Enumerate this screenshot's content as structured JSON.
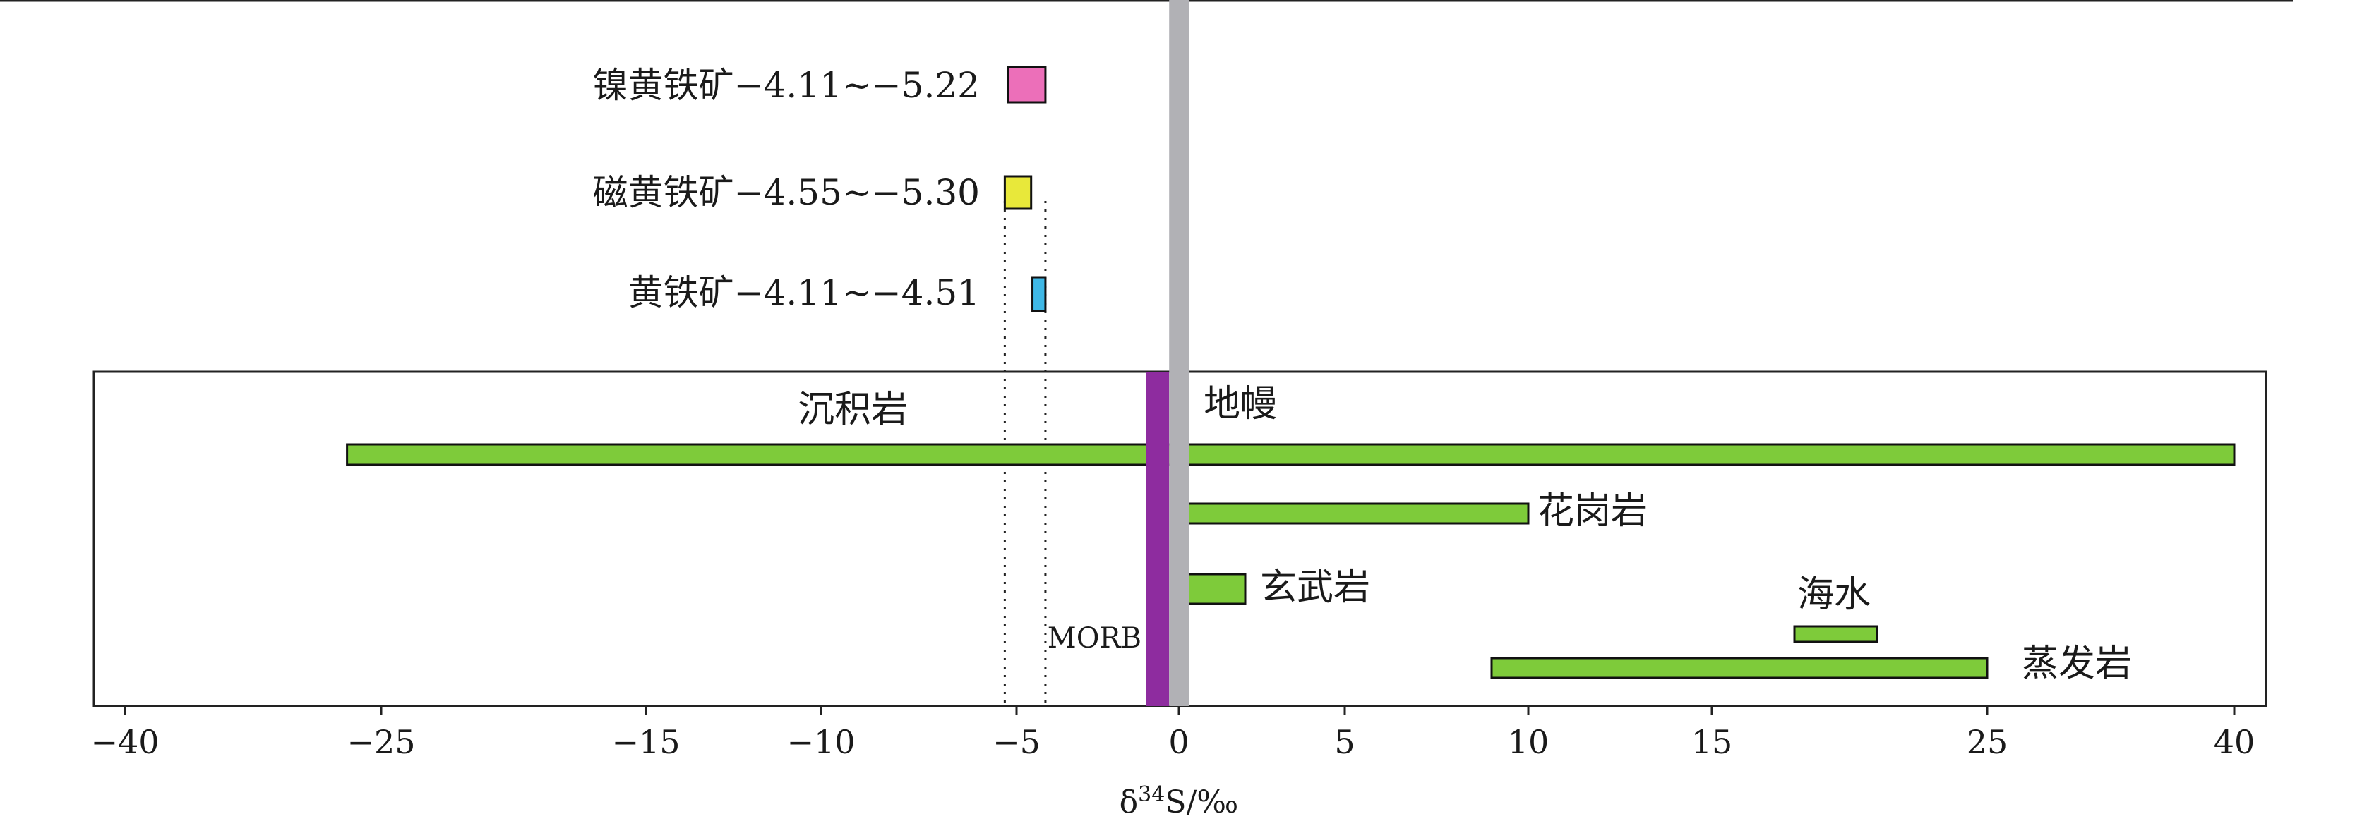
{
  "chart_data": {
    "type": "bar",
    "title": "",
    "xlabel": "δ³⁴S/‰",
    "xlabel_parts": {
      "prefix": "δ",
      "sup": "34",
      "suffix": "S/‰"
    },
    "x_ticks": [
      {
        "label": "−40",
        "value": -40
      },
      {
        "label": "−25",
        "value": -25
      },
      {
        "label": "−15",
        "value": -15
      },
      {
        "label": "−10",
        "value": -10
      },
      {
        "label": "−5",
        "value": -5
      },
      {
        "label": "0",
        "value": 0
      },
      {
        "label": "5",
        "value": 5
      },
      {
        "label": "10",
        "value": 10
      },
      {
        "label": "15",
        "value": 15
      },
      {
        "label": "25",
        "value": 25
      },
      {
        "label": "40",
        "value": 40
      }
    ],
    "minerals": [
      {
        "label": "镍黄铁矿−4.11~−5.22",
        "min": -5.22,
        "max": -4.11,
        "color": "#ec6fb9"
      },
      {
        "label": "磁黄铁矿−4.55~−5.30",
        "min": -5.3,
        "max": -4.55,
        "color": "#e8e83a"
      },
      {
        "label": "黄铁矿−4.11~−4.51",
        "min": -4.51,
        "max": -4.11,
        "color": "#3fb8e6"
      }
    ],
    "reference_ranges": [
      {
        "label": "沉积岩",
        "min": -27,
        "max": 40
      },
      {
        "label": "花岗岩",
        "min": 0,
        "max": 10
      },
      {
        "label": "玄武岩",
        "min": 0,
        "max": 2
      },
      {
        "label": "海水",
        "min": 18,
        "max": 21
      },
      {
        "label": "蒸发岩",
        "min": 9,
        "max": 25
      }
    ],
    "mantle": {
      "label": "地幔",
      "min": -0.3,
      "max": 0.3,
      "color": "#b1b1b5"
    },
    "morb": {
      "label": "MORB",
      "min": -1.0,
      "max": -0.3,
      "color": "#8e2c9f"
    },
    "reference_color": "#7ecb3a",
    "guide_lines": [
      -5.3,
      -4.11
    ]
  }
}
